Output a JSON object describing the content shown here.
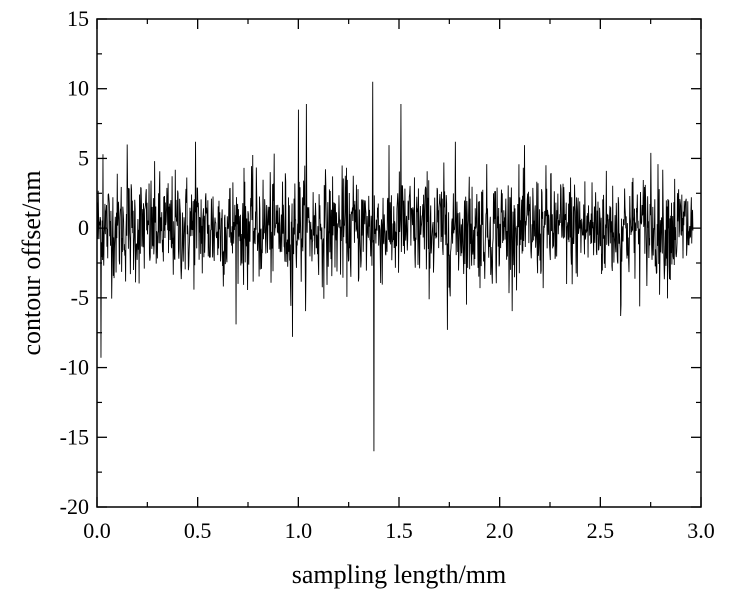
{
  "chart_data": {
    "type": "line",
    "title": "",
    "xlabel": "sampling length/mm",
    "ylabel": "contour offset/nm",
    "xlim": [
      0.0,
      3.0
    ],
    "ylim": [
      -20,
      15
    ],
    "x_ticks": [
      0.0,
      0.5,
      1.0,
      1.5,
      2.0,
      2.5,
      3.0
    ],
    "x_tick_labels": [
      "0.0",
      "0.5",
      "1.0",
      "1.5",
      "2.0",
      "2.5",
      "3.0"
    ],
    "y_ticks": [
      -20,
      -15,
      -10,
      -5,
      0,
      5,
      10,
      15
    ],
    "y_tick_labels": [
      "-20",
      "-15",
      "-10",
      "-5",
      "0",
      "5",
      "10",
      "15"
    ],
    "grid": false,
    "legend": "none",
    "line_color": "#000000",
    "series": [
      {
        "x_range": [
          0.0,
          2.96
        ],
        "noise_amplitude_nm": 3.5,
        "spikes": [
          {
            "x": 0.02,
            "y": -9.3
          },
          {
            "x": 0.03,
            "y": 5.3
          },
          {
            "x": 0.15,
            "y": 6.0
          },
          {
            "x": 0.49,
            "y": 6.2
          },
          {
            "x": 0.69,
            "y": -6.9
          },
          {
            "x": 0.97,
            "y": -7.8
          },
          {
            "x": 1.0,
            "y": 8.5
          },
          {
            "x": 1.04,
            "y": 8.9
          },
          {
            "x": 1.37,
            "y": 10.5
          },
          {
            "x": 1.375,
            "y": -16.0
          },
          {
            "x": 1.51,
            "y": 8.9
          },
          {
            "x": 1.74,
            "y": -7.3
          },
          {
            "x": 1.78,
            "y": 6.2
          },
          {
            "x": 2.6,
            "y": -6.3
          },
          {
            "x": 2.75,
            "y": 5.4
          }
        ]
      }
    ]
  }
}
